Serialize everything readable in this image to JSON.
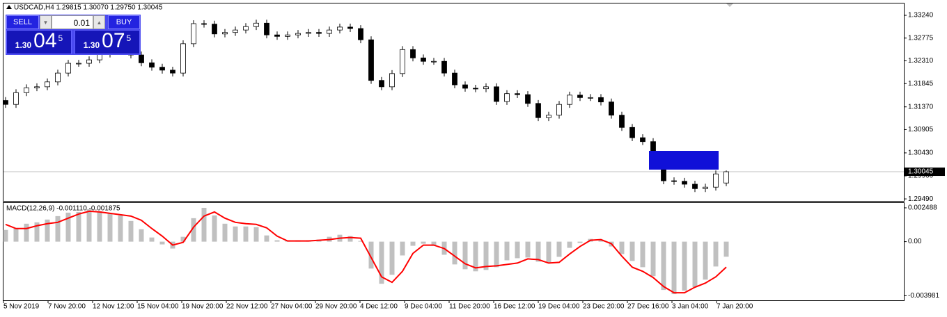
{
  "chart_data": [
    {
      "type": "candlestick",
      "title": "USDCAD,H4  1.29815 1.30070 1.29750 1.30045",
      "open": [
        1.315,
        1.3142,
        1.3166,
        1.3176,
        1.3178,
        1.3188,
        1.3206,
        1.3226,
        1.3226,
        1.3233,
        1.3245,
        1.3252,
        1.3254,
        1.3243,
        1.3227,
        1.3218,
        1.3212,
        1.3206,
        1.3266,
        1.3307,
        1.3306,
        1.3286,
        1.3289,
        1.3294,
        1.3301,
        1.3308,
        1.3284,
        1.3281,
        1.3284,
        1.3287,
        1.3289,
        1.3287,
        1.3294,
        1.33,
        1.3297,
        1.3274,
        1.3191,
        1.3178,
        1.3205,
        1.3254,
        1.3237,
        1.323,
        1.323,
        1.3206,
        1.3182,
        1.3175,
        1.3174,
        1.3178,
        1.3148,
        1.3164,
        1.3162,
        1.3144,
        1.3115,
        1.312,
        1.3142,
        1.3161,
        1.3156,
        1.3156,
        1.3147,
        1.312,
        1.3095,
        1.3074,
        1.3066,
        1.3032,
        1.2986,
        1.2985,
        1.2979,
        1.297,
        1.2973,
        1.29815
      ],
      "high": [
        1.3157,
        1.3173,
        1.3183,
        1.3185,
        1.3195,
        1.3213,
        1.3233,
        1.3233,
        1.324,
        1.3252,
        1.3259,
        1.3261,
        1.3261,
        1.325,
        1.3234,
        1.3225,
        1.3219,
        1.3273,
        1.3314,
        1.3314,
        1.3313,
        1.3296,
        1.3301,
        1.3308,
        1.3315,
        1.3315,
        1.3291,
        1.3291,
        1.3294,
        1.3296,
        1.3296,
        1.3301,
        1.3307,
        1.3307,
        1.3304,
        1.3281,
        1.3198,
        1.3212,
        1.3261,
        1.3261,
        1.3244,
        1.3237,
        1.3237,
        1.3213,
        1.3189,
        1.3182,
        1.3185,
        1.3185,
        1.3171,
        1.3171,
        1.3169,
        1.3151,
        1.3127,
        1.3149,
        1.3168,
        1.3168,
        1.3163,
        1.3163,
        1.3154,
        1.3127,
        1.3102,
        1.3081,
        1.3073,
        1.3039,
        1.2993,
        1.2992,
        1.2986,
        1.298,
        1.3007,
        1.3007
      ],
      "low": [
        1.3135,
        1.3135,
        1.3159,
        1.3169,
        1.3171,
        1.3181,
        1.3199,
        1.3219,
        1.3219,
        1.3226,
        1.3238,
        1.3245,
        1.3236,
        1.322,
        1.3211,
        1.3205,
        1.3199,
        1.3199,
        1.3259,
        1.3299,
        1.3279,
        1.3279,
        1.3282,
        1.3287,
        1.3294,
        1.3277,
        1.3274,
        1.3274,
        1.3277,
        1.328,
        1.328,
        1.328,
        1.3287,
        1.329,
        1.3267,
        1.3184,
        1.3171,
        1.3171,
        1.3198,
        1.323,
        1.3223,
        1.3223,
        1.3199,
        1.3175,
        1.3168,
        1.3167,
        1.3167,
        1.3141,
        1.3141,
        1.3155,
        1.3137,
        1.3108,
        1.3108,
        1.3113,
        1.3135,
        1.3149,
        1.3149,
        1.314,
        1.3113,
        1.3088,
        1.3067,
        1.3059,
        1.3025,
        1.2979,
        1.2978,
        1.2972,
        1.2963,
        1.2963,
        1.2966,
        1.2975
      ],
      "close": [
        1.3142,
        1.3166,
        1.3176,
        1.3178,
        1.3188,
        1.3206,
        1.3226,
        1.3226,
        1.3233,
        1.3245,
        1.3252,
        1.3254,
        1.3243,
        1.3227,
        1.3218,
        1.3212,
        1.3206,
        1.3266,
        1.3307,
        1.3306,
        1.3286,
        1.3289,
        1.3294,
        1.3301,
        1.3308,
        1.3284,
        1.3281,
        1.3284,
        1.3287,
        1.3289,
        1.3287,
        1.3294,
        1.33,
        1.3297,
        1.3274,
        1.3191,
        1.3178,
        1.3205,
        1.3254,
        1.3237,
        1.323,
        1.323,
        1.3206,
        1.3182,
        1.3175,
        1.3174,
        1.3178,
        1.3148,
        1.3164,
        1.3162,
        1.3144,
        1.3115,
        1.312,
        1.3142,
        1.3161,
        1.3156,
        1.3156,
        1.3147,
        1.312,
        1.3095,
        1.3074,
        1.3066,
        1.3032,
        1.2986,
        1.2985,
        1.2979,
        1.297,
        1.2973,
        1.3,
        1.30045
      ],
      "up_color": "#ffffff",
      "down_color": "#000000",
      "x_labels": [
        "5 Nov 2019",
        "7 Nov 20:00",
        "12 Nov 12:00",
        "15 Nov 04:00",
        "19 Nov 20:00",
        "22 Nov 12:00",
        "27 Nov 04:00",
        "29 Nov 20:00",
        "4 Dec 12:00",
        "9 Dec 04:00",
        "11 Dec 20:00",
        "16 Dec 12:00",
        "19 Dec 04:00",
        "23 Dec 20:00",
        "27 Dec 16:00",
        "3 Jan 04:00",
        "7 Jan 20:00"
      ],
      "ylim": [
        1.29449,
        1.33496
      ],
      "yticks": [
        {
          "value": 1.3324,
          "label": "1.33240"
        },
        {
          "value": 1.32775,
          "label": "1.32775"
        },
        {
          "value": 1.3231,
          "label": "1.32310"
        },
        {
          "value": 1.31845,
          "label": "1.31845"
        },
        {
          "value": 1.3137,
          "label": "1.31370"
        },
        {
          "value": 1.30905,
          "label": "1.30905"
        },
        {
          "value": 1.3043,
          "label": "1.30430"
        },
        {
          "value": 1.2996,
          "label": "1.29960"
        },
        {
          "value": 1.2949,
          "label": "1.29490"
        }
      ],
      "current_price": {
        "value": 1.30045,
        "label": "1.30045"
      }
    },
    {
      "type": "macd",
      "title": "MACD(12,26,9) -0.001110 -0.001875",
      "series": [
        {
          "style": "bar",
          "color": "#c0c0c0",
          "values": [
            0.000864,
            0.000965,
            0.001321,
            0.001422,
            0.001626,
            0.00188,
            0.002134,
            0.002184,
            0.002388,
            0.002235,
            0.002083,
            0.00193,
            0.001524,
            0.000914,
            0.000305,
            -0.000203,
            -0.000508,
            0.000356,
            0.001727,
            0.002489,
            0.00193,
            0.001321,
            0.001118,
            0.001118,
            0.001067,
            0.000457,
            0.000102,
            0.000102,
            0.000102,
            0.000102,
            0.000152,
            0.000356,
            0.000508,
            0.000406,
            5.1e-05,
            -0.001981,
            -0.003099,
            -0.002438,
            -0.001016,
            -0.000305,
            -0.000152,
            -0.000305,
            -0.000965,
            -0.001676,
            -0.002032,
            -0.002184,
            -0.002083,
            -0.00188,
            -0.001372,
            -0.001219,
            -0.001168,
            -0.001473,
            -0.001575,
            -0.001118,
            -0.000457,
            -0.000102,
            0.000203,
            0.000152,
            -0.000356,
            -0.000914,
            -0.001422,
            -0.00188,
            -0.00254,
            -0.003556,
            -0.003861,
            -0.003607,
            -0.003353,
            -0.002794,
            -0.001829,
            -0.00111
          ]
        },
        {
          "style": "line",
          "color": "#ff0000",
          "values": [
            0.00127,
            0.000965,
            0.000965,
            0.001168,
            0.001321,
            0.001422,
            0.001727,
            0.002032,
            0.002235,
            0.002184,
            0.002083,
            0.001981,
            0.00188,
            0.001575,
            0.000965,
            0.000406,
            -0.000254,
            -5.1e-05,
            0.001067,
            0.00188,
            0.002184,
            0.001727,
            0.001422,
            0.001321,
            0.00127,
            0.001016,
            0.000406,
            5.1e-05,
            5.1e-05,
            5.1e-05,
            0.000102,
            0.000152,
            0.000254,
            0.000305,
            0.000254,
            -0.001168,
            -0.002591,
            -0.002997,
            -0.002184,
            -0.000864,
            -0.000254,
            -0.000254,
            -0.000508,
            -0.001067,
            -0.001626,
            -0.00193,
            -0.001829,
            -0.001778,
            -0.001676,
            -0.001575,
            -0.00127,
            -0.001321,
            -0.001575,
            -0.001524,
            -0.000914,
            -0.000356,
            0.000102,
            0.000152,
            -0.000152,
            -0.001067,
            -0.00188,
            -0.002184,
            -0.002642,
            -0.003302,
            -0.003759,
            -0.003759,
            -0.003353,
            -0.003048,
            -0.002591,
            -0.001875
          ]
        }
      ],
      "ylim": [
        -0.004318,
        0.002845
      ],
      "yticks": [
        0.002488,
        {
          "value": 0,
          "label": "0.00"
        },
        -0.003981
      ]
    }
  ],
  "trade_panel": {
    "sell": "SELL",
    "buy": "BUY",
    "volume": "0.01",
    "bid": {
      "prefix": "1.30",
      "big": "04",
      "small": "5"
    },
    "ask": {
      "prefix": "1.30",
      "big": "07",
      "small": "5"
    }
  }
}
